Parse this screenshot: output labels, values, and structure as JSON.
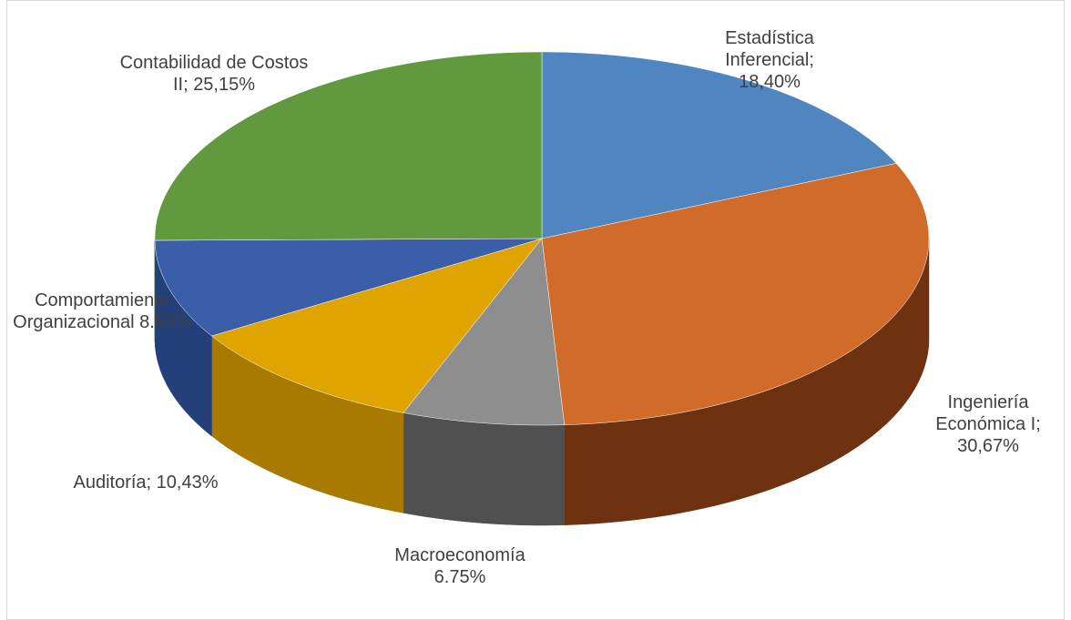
{
  "chart_data": {
    "type": "pie3d",
    "categories": [
      "Estadística Inferencial;",
      "Ingeniería Económica I;",
      "Macroeconomía",
      "Auditoría;",
      "Comportamiento Organizacional",
      "Contabilidad de Costos II;"
    ],
    "values": [
      18.4,
      30.67,
      6.75,
      10.43,
      8.59,
      25.15
    ],
    "value_labels": [
      "18,40%",
      "30,67%",
      "6.75%",
      "10,43%",
      "8.59%",
      "25,15%"
    ],
    "colors": [
      "#4f86c0",
      "#d06b2a",
      "#8e8e8e",
      "#e0a400",
      "#3a5ea8",
      "#62993e"
    ],
    "side_colors": [
      "#2f5a88",
      "#6e3210",
      "#505050",
      "#a87a00",
      "#23407a",
      "#3e6a22"
    ]
  }
}
